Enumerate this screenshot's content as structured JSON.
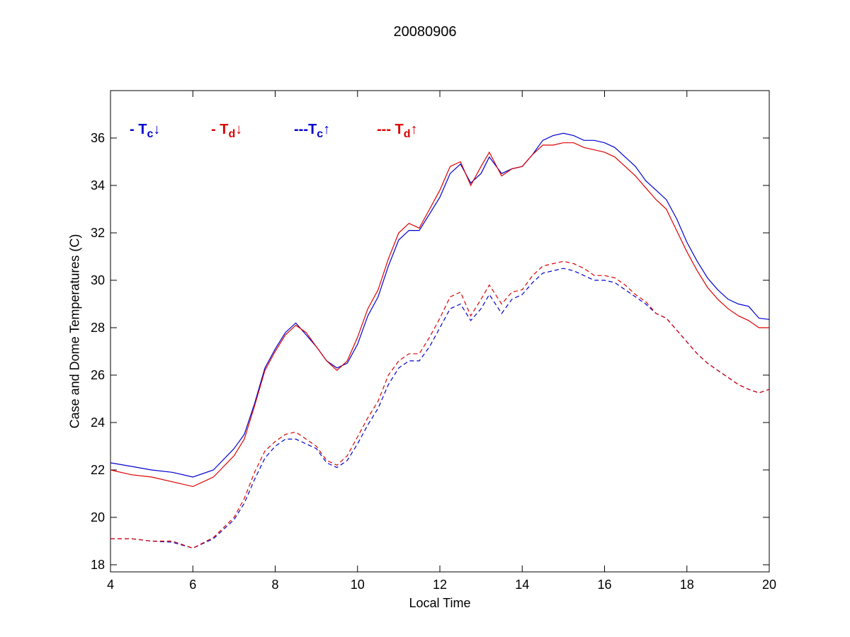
{
  "chart_data": {
    "type": "line",
    "title": "20080906",
    "xlabel": "Local Time",
    "ylabel": "Case and Dome Temperatures (C)",
    "xlim": [
      4,
      20
    ],
    "ylim": [
      17.7,
      38
    ],
    "xticks": [
      4,
      6,
      8,
      10,
      12,
      14,
      16,
      18,
      20
    ],
    "yticks": [
      18,
      20,
      22,
      24,
      26,
      28,
      30,
      32,
      34,
      36
    ],
    "grid": false,
    "legend_placement": "top-left",
    "legend": [
      {
        "prefix": "- T",
        "sub": "c",
        "arrow": "↓",
        "color": "#0000cc"
      },
      {
        "prefix": "- T",
        "sub": "d",
        "arrow": "↓",
        "color": "#dd0000"
      },
      {
        "prefix": "---T",
        "sub": "c",
        "arrow": "↑",
        "color": "#0000cc"
      },
      {
        "prefix": "--- T",
        "sub": "d",
        "arrow": "↑",
        "color": "#dd0000"
      }
    ],
    "x": [
      4,
      4.5,
      5,
      5.5,
      6,
      6.5,
      7,
      7.25,
      7.5,
      7.75,
      8,
      8.25,
      8.5,
      8.75,
      9,
      9.25,
      9.5,
      9.75,
      10,
      10.25,
      10.5,
      10.75,
      11,
      11.25,
      11.5,
      11.75,
      12,
      12.25,
      12.5,
      12.75,
      13,
      13.2,
      13.5,
      13.75,
      14,
      14.25,
      14.5,
      14.75,
      15,
      15.25,
      15.5,
      15.75,
      16,
      16.25,
      16.5,
      16.75,
      17,
      17.25,
      17.5,
      17.75,
      18,
      18.25,
      18.5,
      18.75,
      19,
      19.25,
      19.5,
      19.75,
      20
    ],
    "series": [
      {
        "color": "#0000cc",
        "dash": "solid",
        "values": [
          22.3,
          22.15,
          22.0,
          21.9,
          21.7,
          22.0,
          22.9,
          23.5,
          24.8,
          26.3,
          27.1,
          27.8,
          28.2,
          27.7,
          27.2,
          26.6,
          26.3,
          26.5,
          27.3,
          28.5,
          29.3,
          30.6,
          31.7,
          32.1,
          32.1,
          32.8,
          33.5,
          34.5,
          34.9,
          34.1,
          34.5,
          35.2,
          34.5,
          34.7,
          34.8,
          35.3,
          35.9,
          36.1,
          36.2,
          36.1,
          35.9,
          35.9,
          35.8,
          35.6,
          35.2,
          34.8,
          34.2,
          33.8,
          33.4,
          32.6,
          31.6,
          30.8,
          30.1,
          29.6,
          29.2,
          29.0,
          28.9,
          28.4,
          28.35
        ]
      },
      {
        "color": "#dd0000",
        "dash": "solid",
        "values": [
          22.0,
          21.8,
          21.7,
          21.5,
          21.3,
          21.7,
          22.6,
          23.3,
          24.7,
          26.2,
          27.0,
          27.7,
          28.1,
          27.8,
          27.2,
          26.6,
          26.2,
          26.6,
          27.6,
          28.8,
          29.6,
          30.9,
          32.0,
          32.4,
          32.2,
          33.0,
          33.8,
          34.8,
          35.0,
          34.0,
          34.8,
          35.4,
          34.4,
          34.7,
          34.8,
          35.3,
          35.7,
          35.7,
          35.8,
          35.8,
          35.6,
          35.5,
          35.4,
          35.2,
          34.8,
          34.4,
          33.9,
          33.4,
          33.0,
          32.1,
          31.2,
          30.4,
          29.7,
          29.2,
          28.8,
          28.5,
          28.3,
          28.0,
          28.0
        ]
      },
      {
        "color": "#0000cc",
        "dash": "dashed",
        "values": [
          19.1,
          19.1,
          19.0,
          18.95,
          18.7,
          19.1,
          19.9,
          20.6,
          21.6,
          22.5,
          23.0,
          23.3,
          23.3,
          23.1,
          22.9,
          22.3,
          22.1,
          22.4,
          23.1,
          23.9,
          24.6,
          25.6,
          26.3,
          26.6,
          26.6,
          27.2,
          28.0,
          28.8,
          29.0,
          28.3,
          28.8,
          29.4,
          28.6,
          29.2,
          29.4,
          29.9,
          30.3,
          30.4,
          30.5,
          30.4,
          30.2,
          30.0,
          30.0,
          29.9,
          29.6,
          29.3,
          29.0,
          28.6,
          28.4,
          27.9,
          27.4,
          26.9,
          26.5,
          26.2,
          25.9,
          25.6,
          25.4,
          25.25,
          25.4
        ]
      },
      {
        "color": "#dd0000",
        "dash": "dashed",
        "values": [
          19.1,
          19.1,
          19.0,
          19.0,
          18.7,
          19.15,
          20.0,
          20.8,
          21.9,
          22.8,
          23.2,
          23.5,
          23.6,
          23.3,
          23.0,
          22.4,
          22.2,
          22.6,
          23.4,
          24.2,
          24.9,
          26.0,
          26.6,
          26.9,
          26.9,
          27.6,
          28.4,
          29.3,
          29.5,
          28.5,
          29.2,
          29.8,
          29.0,
          29.5,
          29.6,
          30.2,
          30.6,
          30.7,
          30.8,
          30.7,
          30.5,
          30.2,
          30.2,
          30.1,
          29.8,
          29.4,
          29.1,
          28.6,
          28.4,
          27.9,
          27.4,
          26.9,
          26.5,
          26.2,
          25.9,
          25.6,
          25.4,
          25.25,
          25.4
        ]
      }
    ]
  }
}
